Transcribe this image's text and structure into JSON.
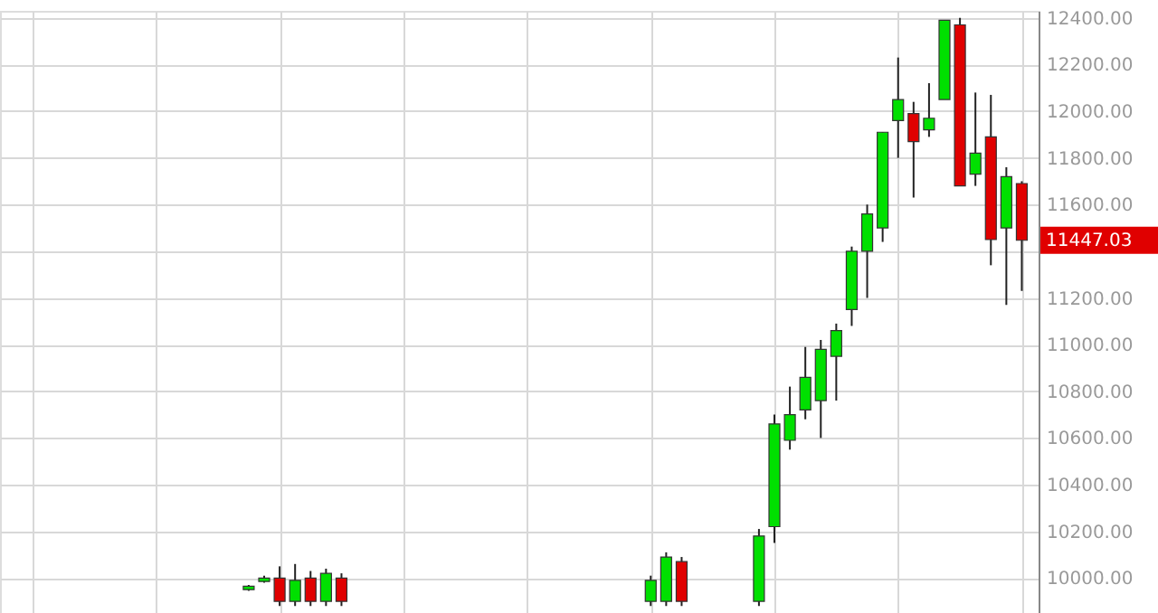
{
  "chart_data": {
    "type": "candlestick",
    "categories": [
      null,
      null,
      null,
      null,
      null,
      null,
      null,
      null,
      null,
      null,
      null,
      null,
      null,
      null,
      null,
      null,
      null,
      null,
      null,
      null,
      null,
      null,
      null,
      null,
      null,
      null,
      null,
      null,
      null,
      null,
      null,
      null,
      null,
      null,
      null,
      null,
      null,
      null,
      null,
      null,
      null,
      null,
      null,
      null,
      null,
      null,
      null,
      null,
      null,
      null,
      null,
      null,
      null,
      null,
      null,
      null,
      null,
      null,
      null,
      null,
      null,
      null,
      null,
      null,
      null,
      null
    ],
    "ohlc": [
      null,
      null,
      null,
      null,
      null,
      null,
      null,
      null,
      null,
      null,
      null,
      null,
      null,
      null,
      null,
      [
        9950,
        9970,
        9945,
        9965
      ],
      [
        9985,
        10010,
        9980,
        10000
      ],
      [
        10000,
        10050,
        9880,
        9900
      ],
      [
        9900,
        10060,
        9880,
        9990
      ],
      [
        10000,
        10030,
        9880,
        9900
      ],
      [
        9900,
        10040,
        9880,
        10020
      ],
      [
        10000,
        10020,
        9880,
        9900
      ],
      null,
      null,
      null,
      null,
      null,
      null,
      null,
      null,
      null,
      null,
      null,
      null,
      null,
      null,
      null,
      null,
      null,
      null,
      null,
      [
        9900,
        10010,
        9880,
        9990
      ],
      [
        9900,
        10110,
        9880,
        10090
      ],
      [
        10070,
        10090,
        9880,
        9900
      ],
      null,
      null,
      null,
      null,
      [
        9900,
        10210,
        9880,
        10180
      ],
      [
        10220,
        10700,
        10150,
        10660
      ],
      [
        10590,
        10820,
        10550,
        10700
      ],
      [
        10720,
        10990,
        10680,
        10860
      ],
      [
        10760,
        11020,
        10600,
        10980
      ],
      [
        10950,
        11090,
        10760,
        11060
      ],
      [
        11150,
        11420,
        11080,
        11400
      ],
      [
        11400,
        11600,
        11200,
        11560
      ],
      [
        11500,
        11910,
        11440,
        11910
      ],
      [
        11960,
        12230,
        11800,
        12050
      ],
      [
        11990,
        12040,
        11630,
        11870
      ],
      [
        11920,
        12120,
        11890,
        11970
      ],
      [
        12050,
        12390,
        12050,
        12390
      ],
      [
        12370,
        12400,
        11680,
        11680
      ],
      [
        11730,
        12080,
        11680,
        11820
      ],
      [
        11890,
        12070,
        11340,
        11450
      ],
      [
        11500,
        11760,
        11170,
        11720
      ],
      [
        11690,
        11700,
        11230,
        11447.03
      ]
    ],
    "colors": [
      null,
      null,
      null,
      null,
      null,
      null,
      null,
      null,
      null,
      null,
      null,
      null,
      null,
      null,
      null,
      "#00e000",
      "#00e000",
      "#e00000",
      "#00e000",
      "#e00000",
      "#00e000",
      "#e00000",
      null,
      null,
      null,
      null,
      null,
      null,
      null,
      null,
      null,
      null,
      null,
      null,
      null,
      null,
      null,
      null,
      null,
      null,
      null,
      "#00e000",
      "#00e000",
      "#e00000",
      null,
      null,
      null,
      null,
      "#00e000",
      "#00e000",
      "#00e000",
      "#00e000",
      "#00e000",
      "#00e000",
      "#00e000",
      "#00e000",
      "#00e000",
      "#00e000",
      "#e00000",
      "#00e000",
      "#00e000",
      "#e00000",
      "#00e000",
      "#e00000",
      "#00e000",
      "#e00000"
    ],
    "ylim": [
      9850,
      12430
    ],
    "yticks": [
      {
        "value": 10000,
        "label": "10000.00"
      },
      {
        "value": 10200,
        "label": "10200.00"
      },
      {
        "value": 10400,
        "label": "10400.00"
      },
      {
        "value": 10600,
        "label": "10600.00"
      },
      {
        "value": 10800,
        "label": "10800.00"
      },
      {
        "value": 11000,
        "label": "11000.00"
      },
      {
        "value": 11200,
        "label": "11200.00"
      },
      {
        "value": 11400,
        "label": null
      },
      {
        "value": 11600,
        "label": "11600.00"
      },
      {
        "value": 11800,
        "label": "11800.00"
      },
      {
        "value": 12000,
        "label": "12000.00"
      },
      {
        "value": 12200,
        "label": "12200.00"
      },
      {
        "value": 12400,
        "label": "12400.00"
      }
    ],
    "annotations": [
      "11447.03"
    ],
    "grid": true,
    "tick_labels": "y"
  }
}
